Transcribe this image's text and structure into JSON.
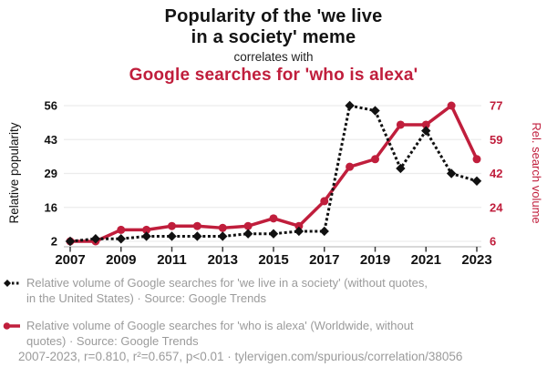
{
  "header": {
    "title_line1": "Popularity of the 'we live",
    "title_line2": "in a society' meme",
    "connector": "correlates with",
    "subtitle": "Google searches for 'who is alexa'"
  },
  "colors": {
    "red": "#c01e3c",
    "black": "#111111",
    "legend_gray": "#9b9b9b",
    "gridline": "#ececec",
    "axis_line": "#cbcbcb",
    "tick_mark": "#3a3a3a"
  },
  "chart_data": {
    "type": "line",
    "title": "Popularity of the 'we live in a society' meme correlates with Google searches for 'who is alexa'",
    "x": [
      2007,
      2008,
      2009,
      2010,
      2011,
      2012,
      2013,
      2014,
      2015,
      2016,
      2017,
      2018,
      2019,
      2020,
      2021,
      2022,
      2023
    ],
    "x_tick_labels": [
      "2007",
      "2009",
      "2011",
      "2013",
      "2015",
      "2017",
      "2019",
      "2021",
      "2023"
    ],
    "series": [
      {
        "name": "we live in a society",
        "axis": "left",
        "line": "dashed",
        "marker": "diamond",
        "color": "#111111",
        "values": [
          2,
          3,
          3,
          4,
          4,
          4,
          4,
          5,
          5,
          6,
          6,
          56,
          54,
          31,
          46,
          29,
          26
        ]
      },
      {
        "name": "who is alexa",
        "axis": "right",
        "line": "solid",
        "marker": "circle",
        "color": "#c01e3c",
        "values": [
          6,
          6,
          12,
          12,
          14,
          14,
          13,
          14,
          18,
          14,
          27,
          45,
          49,
          67,
          67,
          77,
          49
        ]
      }
    ],
    "left_axis": {
      "label": "Relative popularity",
      "ticks": [
        2,
        16,
        29,
        43,
        56
      ],
      "range": [
        2,
        56
      ]
    },
    "right_axis": {
      "label": "Rel. search volume",
      "ticks": [
        6,
        24,
        42,
        59,
        77
      ],
      "range": [
        6,
        77
      ]
    },
    "grid": true,
    "legend_position": "bottom"
  },
  "legend": [
    {
      "marker": "black-diamond-dashed",
      "text": "Relative volume of Google searches for 'we live in a society' (without quotes, in the United States) · Source: Google Trends"
    },
    {
      "marker": "red-circle-solid",
      "text": "Relative volume of Google searches for 'who is alexa' (Worldwide, without quotes) · Source: Google Trends"
    }
  ],
  "footer": {
    "text": "2007-2023, r=0.810, r²=0.657, p<0.01 · tylervigen.com/spurious/correlation/38056"
  }
}
